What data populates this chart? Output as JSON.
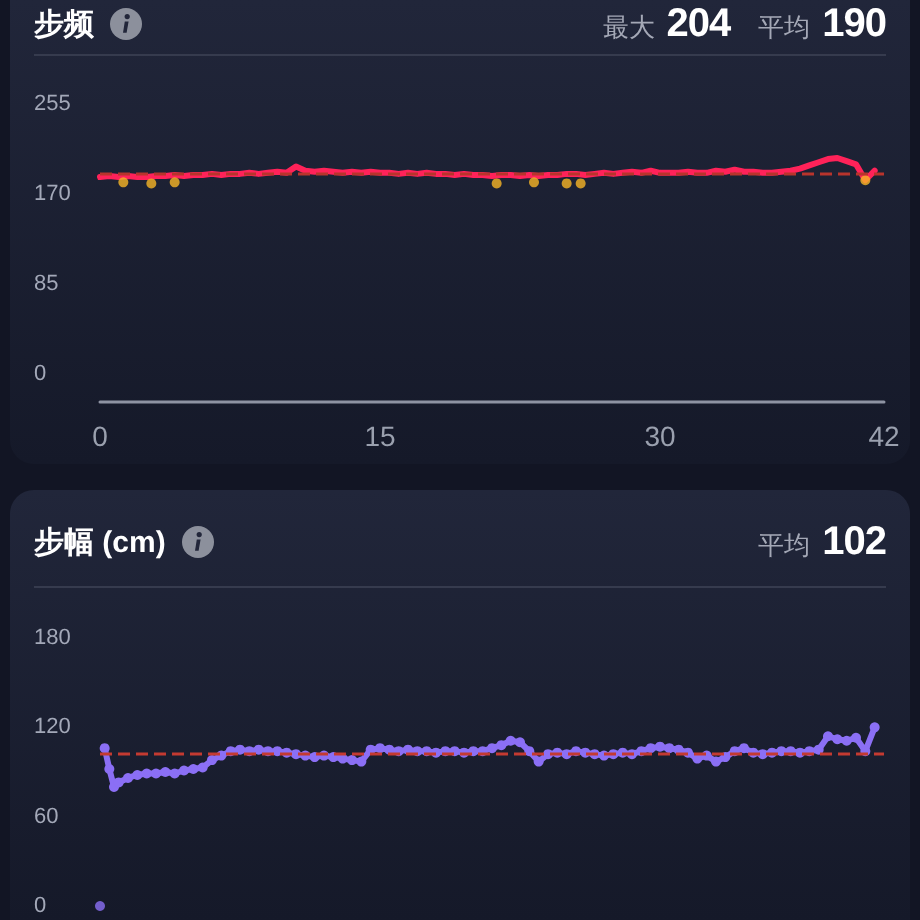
{
  "chart_data": [
    {
      "type": "line",
      "title": "步频",
      "annotations": [
        "最大 204",
        "平均 190"
      ],
      "x": [
        0,
        0.5,
        1,
        1.5,
        2,
        2.5,
        3,
        3.5,
        4,
        4.5,
        5,
        5.5,
        6,
        6.5,
        7,
        7.5,
        8,
        8.5,
        9,
        9.5,
        10,
        10.5,
        11,
        11.5,
        12,
        12.5,
        13,
        13.5,
        14,
        14.5,
        15,
        15.5,
        16,
        16.5,
        17,
        17.5,
        18,
        18.5,
        19,
        19.5,
        20,
        20.5,
        21,
        21.5,
        22,
        22.5,
        23,
        23.5,
        24,
        24.5,
        25,
        25.5,
        26,
        26.5,
        27,
        27.5,
        28,
        28.5,
        29,
        29.5,
        30,
        30.5,
        31,
        31.5,
        32,
        32.5,
        33,
        33.5,
        34,
        34.5,
        35,
        35.5,
        36,
        36.5,
        37,
        37.5,
        38,
        38.5,
        39,
        39.5,
        40,
        40.5,
        41,
        41.5
      ],
      "series": [
        {
          "color": "#ff2259",
          "values": [
            186,
            187,
            186,
            187,
            186,
            186,
            187,
            187,
            188,
            187,
            188,
            188,
            189,
            188,
            189,
            189,
            190,
            189,
            190,
            191,
            190,
            196,
            192,
            191,
            192,
            191,
            190,
            191,
            190,
            191,
            190,
            190,
            189,
            190,
            189,
            190,
            189,
            189,
            188,
            189,
            188,
            188,
            187,
            188,
            188,
            187,
            188,
            187,
            188,
            188,
            189,
            189,
            188,
            189,
            190,
            189,
            190,
            191,
            190,
            192,
            190,
            190,
            190,
            191,
            190,
            190,
            192,
            191,
            193,
            191,
            191,
            190,
            190,
            191,
            192,
            194,
            197,
            200,
            203,
            204,
            201,
            198,
            183,
            192
          ]
        },
        {
          "type": "scatter",
          "marker": "circle",
          "color": "#f7b526",
          "x": [
            1.25,
            2.75,
            4,
            21.25,
            23.25,
            25,
            25.75,
            41
          ],
          "values": [
            181,
            180,
            181,
            180,
            181,
            180,
            180,
            183
          ]
        }
      ],
      "xlim": [
        0,
        42
      ],
      "xticks": [
        0,
        15,
        30,
        42
      ],
      "ylim": [
        0,
        255
      ],
      "yticks": [
        0,
        85,
        170,
        255
      ],
      "ref_lines": [
        {
          "axis": "y",
          "value": 190,
          "color": "#b8342c",
          "line_style": "dashed"
        }
      ]
    },
    {
      "type": "line",
      "title": "步幅 (cm)",
      "annotations": [
        "平均 102"
      ],
      "marker": "circle",
      "x": [
        0.25,
        0.5,
        0.75,
        1,
        1.5,
        2,
        2.5,
        3,
        3.5,
        4,
        4.5,
        5,
        5.5,
        6,
        6.5,
        7,
        7.5,
        8,
        8.5,
        9,
        9.5,
        10,
        10.5,
        11,
        11.5,
        12,
        12.5,
        13,
        13.5,
        14,
        14.5,
        15,
        15.5,
        16,
        16.5,
        17,
        17.5,
        18,
        18.5,
        19,
        19.5,
        20,
        20.5,
        21,
        21.5,
        22,
        22.5,
        23,
        23.5,
        24,
        24.5,
        25,
        25.5,
        26,
        26.5,
        27,
        27.5,
        28,
        28.5,
        29,
        29.5,
        30,
        30.5,
        31,
        31.5,
        32,
        32.5,
        33,
        33.5,
        34,
        34.5,
        35,
        35.5,
        36,
        36.5,
        37,
        37.5,
        38,
        38.5,
        39,
        39.5,
        40,
        40.5,
        41,
        41.5
      ],
      "series": [
        {
          "color": "#8b6ff5",
          "values": [
            106,
            92,
            80,
            83,
            86,
            88,
            89,
            89,
            90,
            89,
            91,
            92,
            93,
            98,
            101,
            104,
            105,
            104,
            105,
            104,
            104,
            103,
            102,
            101,
            100,
            101,
            100,
            99,
            98,
            97,
            105,
            106,
            105,
            104,
            105,
            104,
            104,
            103,
            104,
            104,
            103,
            104,
            104,
            106,
            108,
            111,
            110,
            104,
            97,
            102,
            103,
            102,
            104,
            103,
            102,
            101,
            102,
            103,
            102,
            104,
            106,
            107,
            106,
            105,
            103,
            99,
            101,
            97,
            100,
            104,
            106,
            103,
            102,
            103,
            104,
            104,
            103,
            104,
            105,
            114,
            112,
            111,
            113,
            104,
            120
          ]
        },
        {
          "type": "scatter",
          "color": "#8b6ff5",
          "x": [
            0
          ],
          "values": [
            0
          ]
        }
      ],
      "xlim": [
        0,
        42
      ],
      "ylim": [
        0,
        180
      ],
      "yticks": [
        0,
        60,
        120,
        180
      ],
      "tick_labels": "y",
      "ref_lines": [
        {
          "axis": "y",
          "value": 102,
          "color": "#c43a31",
          "line_style": "dashed"
        }
      ]
    }
  ]
}
